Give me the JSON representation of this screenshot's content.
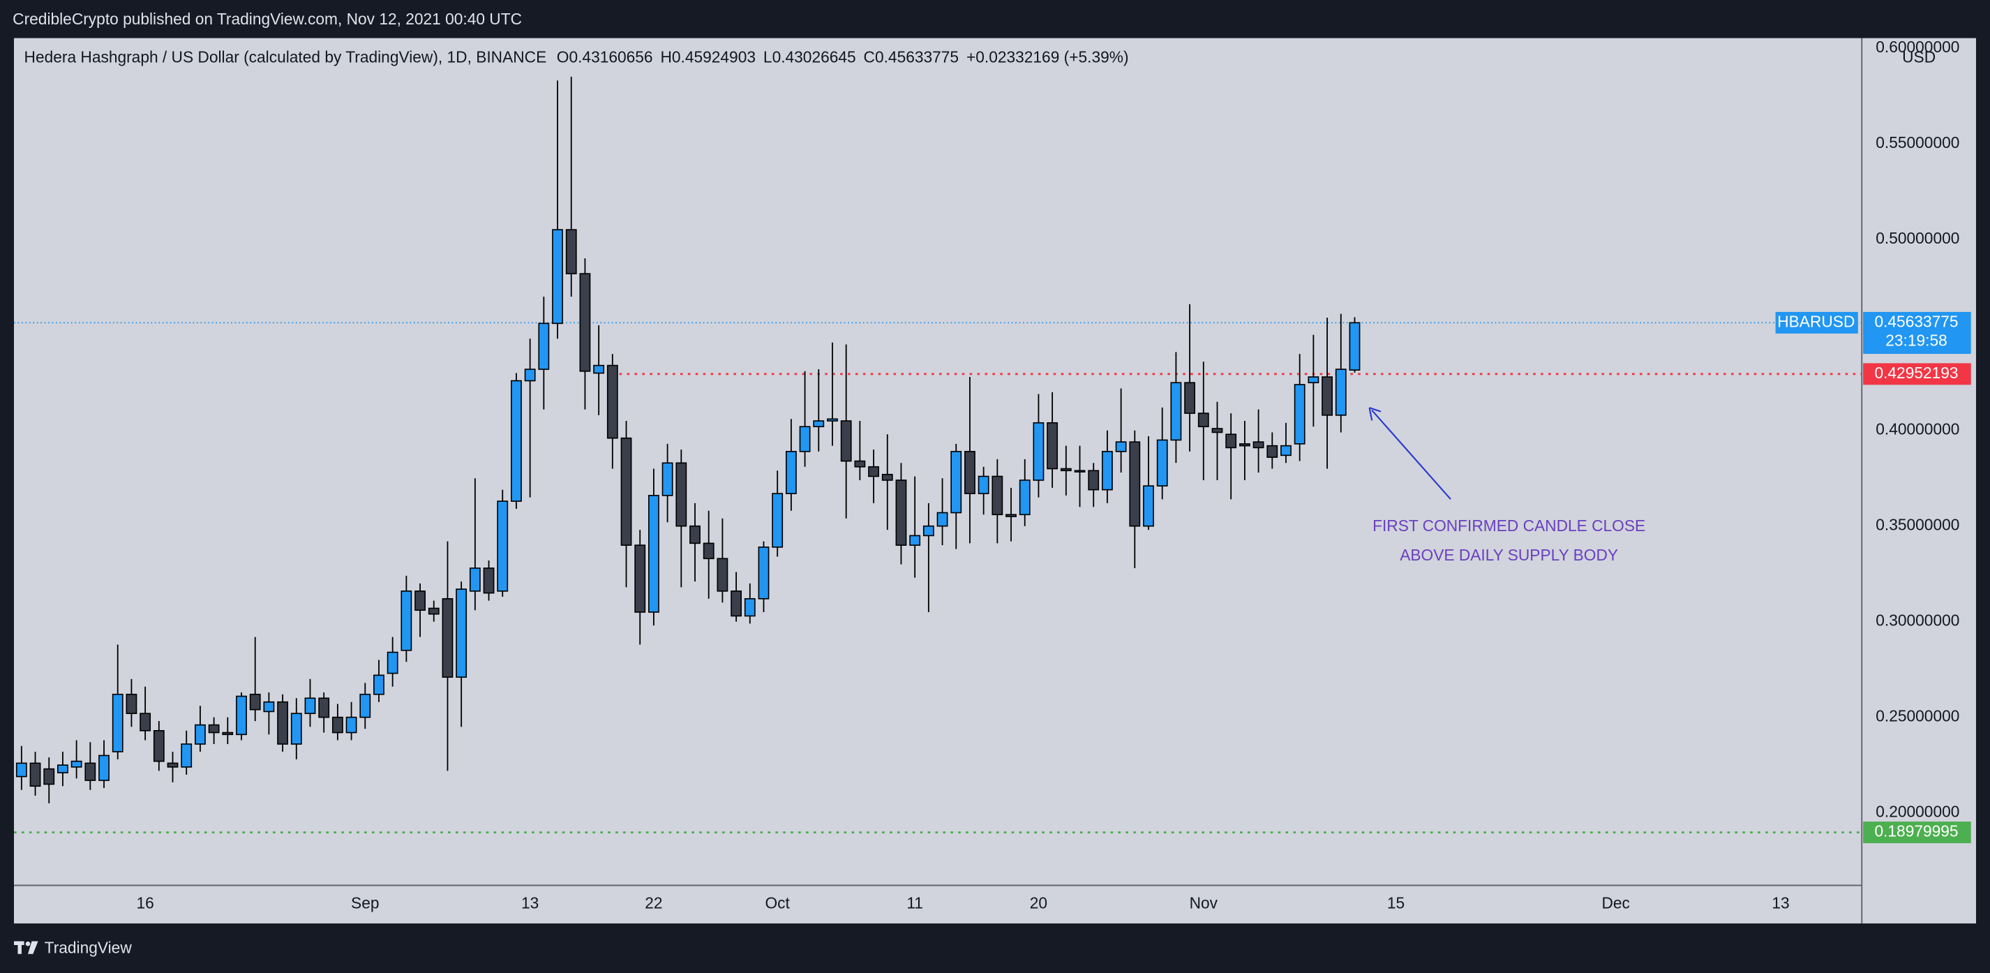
{
  "header": {
    "publisher": "CredibleCrypto published on TradingView.com, Nov 12, 2021 00:40 UTC",
    "brand": "TradingView"
  },
  "chart_data": {
    "type": "candlestick",
    "title": "Hedera Hashgraph / US Dollar (calculated by TradingView), 1D, BINANCE",
    "ohlc_legend": {
      "open_label": "O",
      "open": 0.43160656,
      "high_label": "H",
      "high": 0.45924903,
      "low_label": "L",
      "low": 0.43026645,
      "close_label": "C",
      "close": 0.45633775,
      "change": "+0.02332169 (+5.39%)"
    },
    "series": [
      {
        "name": "HBARUSD",
        "up_color": "#2196f3",
        "down_color": "#3b3f4b",
        "open": [
          0.219,
          0.226,
          0.223,
          0.221,
          0.224,
          0.226,
          0.217,
          0.232,
          0.262,
          0.252,
          0.243,
          0.226,
          0.224,
          0.236,
          0.246,
          0.242,
          0.241,
          0.262,
          0.253,
          0.258,
          0.236,
          0.252,
          0.26,
          0.25,
          0.242,
          0.25,
          0.262,
          0.273,
          0.285,
          0.316,
          0.307,
          0.312,
          0.271,
          0.316,
          0.328,
          0.316,
          0.363,
          0.426,
          0.432,
          0.456,
          0.505,
          0.482,
          0.43,
          0.434,
          0.396,
          0.34,
          0.305,
          0.366,
          0.383,
          0.35,
          0.341,
          0.333,
          0.316,
          0.303,
          0.312,
          0.339,
          0.367,
          0.389,
          0.402,
          0.405,
          0.405,
          0.384,
          0.381,
          0.377,
          0.374,
          0.34,
          0.345,
          0.35,
          0.357,
          0.389,
          0.367,
          0.376,
          0.356,
          0.356,
          0.374,
          0.404,
          0.38,
          0.379,
          0.379,
          0.369,
          0.389,
          0.394,
          0.35,
          0.371,
          0.395,
          0.425,
          0.409,
          0.401,
          0.398,
          0.393,
          0.394,
          0.392,
          0.387,
          0.393,
          0.425,
          0.428,
          0.408,
          0.43160656
        ],
        "high": [
          0.235,
          0.232,
          0.229,
          0.232,
          0.238,
          0.237,
          0.238,
          0.288,
          0.27,
          0.266,
          0.248,
          0.232,
          0.243,
          0.256,
          0.25,
          0.25,
          0.263,
          0.292,
          0.263,
          0.262,
          0.26,
          0.27,
          0.263,
          0.257,
          0.258,
          0.268,
          0.28,
          0.292,
          0.324,
          0.32,
          0.311,
          0.342,
          0.321,
          0.375,
          0.332,
          0.369,
          0.43,
          0.448,
          0.47,
          0.583,
          0.585,
          0.49,
          0.455,
          0.44,
          0.405,
          0.348,
          0.38,
          0.393,
          0.39,
          0.362,
          0.358,
          0.354,
          0.326,
          0.32,
          0.342,
          0.379,
          0.406,
          0.431,
          0.432,
          0.446,
          0.445,
          0.405,
          0.39,
          0.398,
          0.383,
          0.376,
          0.362,
          0.375,
          0.393,
          0.428,
          0.381,
          0.385,
          0.37,
          0.385,
          0.419,
          0.42,
          0.392,
          0.392,
          0.383,
          0.4,
          0.422,
          0.4,
          0.397,
          0.412,
          0.441,
          0.466,
          0.436,
          0.415,
          0.409,
          0.405,
          0.411,
          0.399,
          0.404,
          0.44,
          0.45,
          0.459,
          0.461,
          0.45924903
        ],
        "low": [
          0.212,
          0.209,
          0.205,
          0.214,
          0.218,
          0.212,
          0.213,
          0.228,
          0.245,
          0.238,
          0.222,
          0.216,
          0.22,
          0.232,
          0.236,
          0.236,
          0.238,
          0.248,
          0.241,
          0.232,
          0.228,
          0.245,
          0.242,
          0.238,
          0.238,
          0.244,
          0.258,
          0.266,
          0.279,
          0.292,
          0.3,
          0.222,
          0.245,
          0.306,
          0.311,
          0.313,
          0.359,
          0.365,
          0.411,
          0.448,
          0.47,
          0.411,
          0.408,
          0.38,
          0.318,
          0.288,
          0.298,
          0.352,
          0.318,
          0.321,
          0.312,
          0.31,
          0.3,
          0.299,
          0.305,
          0.334,
          0.358,
          0.381,
          0.389,
          0.392,
          0.354,
          0.374,
          0.362,
          0.348,
          0.33,
          0.323,
          0.305,
          0.34,
          0.338,
          0.341,
          0.356,
          0.341,
          0.342,
          0.35,
          0.365,
          0.37,
          0.366,
          0.36,
          0.36,
          0.362,
          0.378,
          0.328,
          0.348,
          0.364,
          0.383,
          0.389,
          0.374,
          0.374,
          0.364,
          0.374,
          0.378,
          0.38,
          0.383,
          0.384,
          0.402,
          0.38,
          0.399,
          0.43026645
        ],
        "close": [
          0.226,
          0.214,
          0.215,
          0.225,
          0.227,
          0.217,
          0.23,
          0.262,
          0.252,
          0.243,
          0.227,
          0.224,
          0.236,
          0.246,
          0.242,
          0.241,
          0.261,
          0.254,
          0.258,
          0.236,
          0.252,
          0.26,
          0.25,
          0.242,
          0.25,
          0.262,
          0.272,
          0.284,
          0.316,
          0.306,
          0.304,
          0.271,
          0.317,
          0.328,
          0.315,
          0.363,
          0.426,
          0.432,
          0.456,
          0.505,
          0.482,
          0.431,
          0.434,
          0.396,
          0.34,
          0.305,
          0.366,
          0.383,
          0.35,
          0.341,
          0.333,
          0.316,
          0.303,
          0.312,
          0.339,
          0.367,
          0.389,
          0.402,
          0.405,
          0.406,
          0.384,
          0.381,
          0.376,
          0.374,
          0.34,
          0.345,
          0.35,
          0.357,
          0.389,
          0.367,
          0.376,
          0.356,
          0.355,
          0.374,
          0.404,
          0.38,
          0.379,
          0.379,
          0.369,
          0.389,
          0.394,
          0.35,
          0.371,
          0.395,
          0.425,
          0.409,
          0.402,
          0.399,
          0.391,
          0.392,
          0.391,
          0.386,
          0.392,
          0.424,
          0.428,
          0.408,
          0.432,
          0.45633775
        ]
      }
    ],
    "xlim": [
      -0.55,
      133.9
    ],
    "xticks": [
      {
        "value": 9,
        "label": "16"
      },
      {
        "value": 25,
        "label": "Sep"
      },
      {
        "value": 37,
        "label": "13"
      },
      {
        "value": 46,
        "label": "22"
      },
      {
        "value": 55,
        "label": "Oct"
      },
      {
        "value": 65,
        "label": "11"
      },
      {
        "value": 74,
        "label": "20"
      },
      {
        "value": 86,
        "label": "Nov"
      },
      {
        "value": 100,
        "label": "15"
      },
      {
        "value": 116,
        "label": "Dec"
      },
      {
        "value": 128,
        "label": "13"
      }
    ],
    "ylim": [
      0.1621,
      0.6052
    ],
    "yticks": [
      {
        "value": 0.2,
        "label": "0.20000000"
      },
      {
        "value": 0.25,
        "label": "0.25000000"
      },
      {
        "value": 0.3,
        "label": "0.30000000"
      },
      {
        "value": 0.35,
        "label": "0.35000000"
      },
      {
        "value": 0.4,
        "label": "0.40000000"
      },
      {
        "value": 0.5,
        "label": "0.50000000"
      },
      {
        "value": 0.55,
        "label": "0.55000000"
      },
      {
        "value": 0.6,
        "label": "0.60000000"
      }
    ],
    "y_unit": "USD",
    "last_price": {
      "value": 0.45633775,
      "tag": "HBARUSD",
      "countdown": "23:19:58",
      "color": "#2196f3"
    },
    "levels": [
      {
        "value": 0.42952193,
        "color": "#f23645"
      },
      {
        "value": 0.18979995,
        "color": "#4caf50"
      }
    ],
    "annotation": {
      "lines": [
        "FIRST CONFIRMED CANDLE CLOSE",
        "ABOVE DAILY SUPPLY BODY"
      ],
      "color": "#6a3fc0"
    }
  }
}
